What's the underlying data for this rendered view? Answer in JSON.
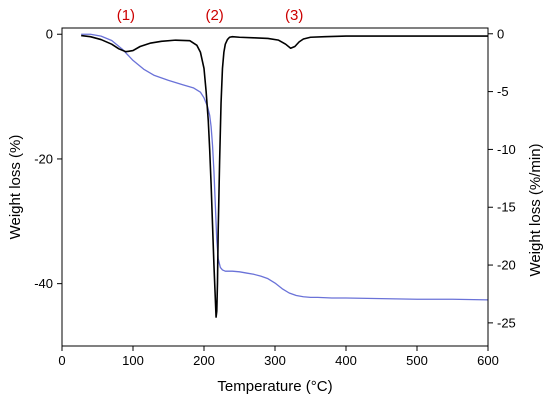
{
  "chart_data": {
    "type": "line",
    "title": "",
    "xlabel": "Temperature (°C)",
    "ylabel_left": "Weight loss (%)",
    "ylabel_right": "Weight loss (%/min)",
    "xlim": [
      0,
      600
    ],
    "ylim_left": [
      -50,
      1
    ],
    "ylim_right": [
      -27,
      0.5
    ],
    "x_ticks": [
      0,
      100,
      200,
      300,
      400,
      500,
      600
    ],
    "y_left_ticks": [
      0,
      -20,
      -40
    ],
    "y_right_ticks": [
      0,
      -5,
      -10,
      -15,
      -20,
      -25
    ],
    "grid": false,
    "legend": "none",
    "stage_labels": [
      {
        "text": "(1)",
        "x": 90
      },
      {
        "text": "(2)",
        "x": 215
      },
      {
        "text": "(3)",
        "x": 327
      }
    ],
    "series": [
      {
        "axis": "left",
        "color": "#6a72d8",
        "x": [
          27,
          40,
          55,
          70,
          85,
          100,
          115,
          130,
          150,
          170,
          185,
          195,
          200,
          205,
          208,
          210,
          212,
          214,
          216,
          218,
          220,
          223,
          226,
          230,
          235,
          240,
          250,
          260,
          270,
          280,
          290,
          300,
          310,
          320,
          330,
          340,
          350,
          360,
          380,
          400,
          450,
          500,
          550,
          600
        ],
        "y": [
          0.0,
          0.0,
          -0.3,
          -1.0,
          -2.4,
          -4.2,
          -5.6,
          -6.6,
          -7.4,
          -8.1,
          -8.6,
          -9.3,
          -10.2,
          -11.6,
          -13.0,
          -14.8,
          -17.8,
          -22.0,
          -27.5,
          -33.0,
          -36.0,
          -37.4,
          -37.8,
          -38.0,
          -38.0,
          -38.0,
          -38.1,
          -38.3,
          -38.5,
          -38.8,
          -39.2,
          -39.9,
          -40.8,
          -41.5,
          -41.9,
          -42.1,
          -42.2,
          -42.2,
          -42.3,
          -42.3,
          -42.4,
          -42.5,
          -42.5,
          -42.6
        ]
      },
      {
        "axis": "right",
        "color": "#000000",
        "x": [
          27,
          40,
          55,
          70,
          80,
          90,
          100,
          110,
          125,
          140,
          160,
          180,
          190,
          195,
          200,
          203,
          206,
          208,
          210,
          212,
          214,
          216,
          217,
          218,
          219,
          220,
          222,
          224,
          226,
          228,
          230,
          233,
          236,
          240,
          250,
          270,
          290,
          305,
          315,
          322,
          328,
          334,
          340,
          350,
          370,
          400,
          450,
          500,
          550,
          600
        ],
        "y": [
          -0.15,
          -0.25,
          -0.5,
          -0.9,
          -1.3,
          -1.55,
          -1.45,
          -1.1,
          -0.8,
          -0.65,
          -0.55,
          -0.6,
          -1.0,
          -1.6,
          -3.0,
          -5.0,
          -7.5,
          -10.0,
          -13.0,
          -16.5,
          -20.0,
          -23.0,
          -24.5,
          -24.0,
          -21.5,
          -17.0,
          -11.0,
          -6.0,
          -3.0,
          -1.6,
          -0.9,
          -0.5,
          -0.3,
          -0.25,
          -0.3,
          -0.35,
          -0.4,
          -0.55,
          -0.9,
          -1.25,
          -1.1,
          -0.7,
          -0.45,
          -0.3,
          -0.25,
          -0.2,
          -0.2,
          -0.2,
          -0.2,
          -0.2
        ]
      }
    ]
  },
  "colors": {
    "stage_label": "#cc0000",
    "axis": "#000000"
  }
}
